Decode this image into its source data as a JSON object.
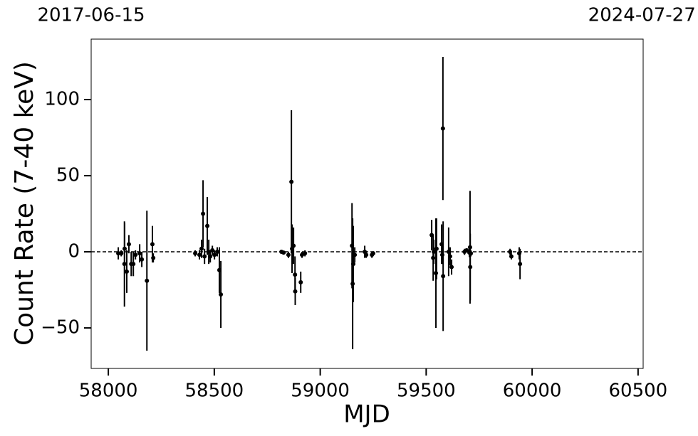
{
  "chart_data": {
    "type": "scatter",
    "xlabel": "MJD",
    "ylabel": "Count Rate (7-40 keV)",
    "color": "#000000",
    "x": [
      58047,
      58061,
      58077,
      58076,
      58087,
      58097,
      58108,
      58118,
      58128,
      58148,
      58158,
      58182,
      58208,
      58212,
      58410,
      58430,
      58440,
      58447,
      58454,
      58467,
      58474,
      58481,
      58491,
      58501,
      58514,
      58524,
      58531,
      58817,
      58827,
      58850,
      58864,
      58867,
      58874,
      58881,
      58882,
      58908,
      58914,
      58928,
      59150,
      59153,
      59156,
      59163,
      59210,
      59217,
      59244,
      59250,
      59526,
      59533,
      59536,
      59546,
      59549,
      59573,
      59576,
      59579,
      59580,
      59606,
      59613,
      59620,
      59681,
      59691,
      59704,
      59707,
      59708,
      59711,
      59896,
      59902,
      59939,
      59943
    ],
    "values": [
      -1,
      -1,
      2,
      -8,
      -13,
      5,
      -8,
      -8,
      -2,
      -1,
      -5,
      -19,
      5,
      -4,
      -1,
      -2,
      2,
      25,
      -3,
      17,
      0,
      -3,
      1,
      -2,
      0,
      -12,
      -28,
      0,
      -0.5,
      -2,
      46,
      2,
      4,
      -15,
      -26,
      -20,
      -2,
      -1,
      4,
      -21,
      -8,
      -2,
      0,
      -2,
      -2,
      -1,
      11,
      -4,
      0,
      -14,
      2,
      5,
      -2,
      81,
      -16,
      0,
      -3,
      -10,
      0,
      1,
      -0.5,
      3,
      -10,
      -1,
      0,
      -3,
      -1,
      -8
    ],
    "errors": [
      4,
      2,
      17,
      28,
      14,
      6,
      8,
      8,
      3,
      6,
      5,
      46,
      12,
      3,
      2,
      3,
      6,
      22,
      5,
      19,
      8,
      4,
      3,
      3,
      3,
      15,
      22,
      1,
      1,
      2,
      47,
      16,
      12,
      12,
      9,
      7,
      2,
      2,
      28,
      43,
      25,
      5,
      4,
      2,
      2,
      1,
      10,
      15,
      8,
      36,
      20,
      13,
      6,
      47,
      36,
      16,
      6,
      5,
      2,
      1,
      3,
      37,
      22,
      2,
      2,
      2,
      4,
      10
    ],
    "hline": 0,
    "xlim": [
      57919,
      60524
    ],
    "ylim": [
      -76.6,
      139.7
    ],
    "xticks": [
      58000,
      58500,
      59000,
      59500,
      60000,
      60500
    ],
    "yticks": [
      {
        "value": -50,
        "label": "−50"
      },
      0,
      50,
      100
    ],
    "x2ticks": [
      {
        "value": 57919,
        "label": "2017-06-15"
      },
      {
        "value": 60518,
        "label": "2024-07-27"
      }
    ]
  }
}
